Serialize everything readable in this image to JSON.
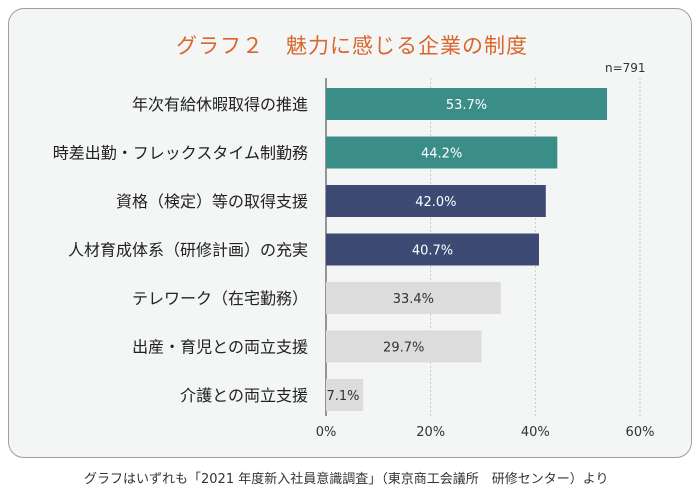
{
  "title": "グラフ２　魅力に感じる企業の制度",
  "n_label": "n=791",
  "caption": "グラフはいずれも「2021 年度新入社員意識調査」（東京商工会議所　研修センター）より",
  "colors": {
    "teal": "#3b8e88",
    "navy": "#3d4b74",
    "gray": "#dcdcdc",
    "title": "#d9662c"
  },
  "chart_data": {
    "type": "bar",
    "orientation": "horizontal",
    "categories": [
      "年次有給休暇取得の推進",
      "時差出勤・フレックスタイム制勤務",
      "資格（検定）等の取得支援",
      "人材育成体系（研修計画）の充実",
      "テレワーク（在宅勤務）",
      "出産・育児との両立支援",
      "介護との両立支援"
    ],
    "values": [
      53.7,
      44.2,
      42.0,
      40.7,
      33.4,
      29.7,
      7.1
    ],
    "value_labels": [
      "53.7%",
      "44.2%",
      "42.0%",
      "40.7%",
      "33.4%",
      "29.7%",
      "7.1%"
    ],
    "bar_colors": [
      "teal",
      "teal",
      "navy",
      "navy",
      "gray",
      "gray",
      "gray"
    ],
    "xlim": [
      0,
      60
    ],
    "xticks": [
      0,
      20,
      40,
      60
    ],
    "xtick_labels": [
      "0%",
      "20%",
      "40%",
      "60%"
    ],
    "grid": true
  }
}
